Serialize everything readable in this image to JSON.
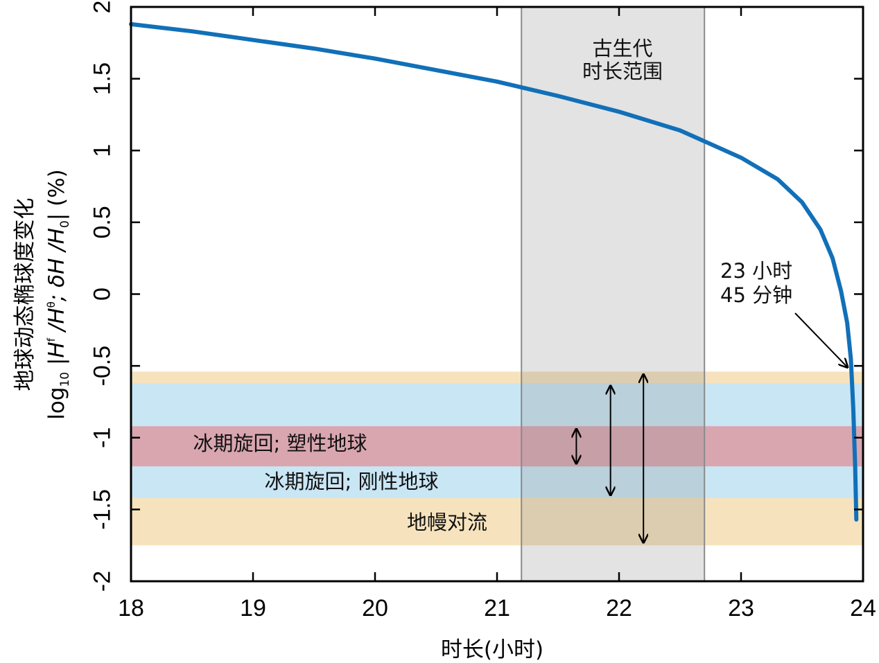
{
  "chart_data": {
    "type": "line",
    "xlabel": "时长(小时)",
    "ylabel_line1": "地球动态椭球度变化",
    "ylabel_line2_prefix": "log",
    "ylabel_line2_sub": "10",
    "ylabel_line2_mid": " |H",
    "ylabel_line2_sup1": "f",
    "ylabel_line2_mid2": " /H",
    "ylabel_line2_sup2": "θ",
    "ylabel_line2_mid3": "; δH /H",
    "ylabel_line2_sub2": "0",
    "ylabel_line2_end": "| (%)",
    "xlim": [
      18,
      24
    ],
    "ylim": [
      -2,
      2
    ],
    "xticks": [
      18,
      19,
      20,
      21,
      22,
      23,
      24
    ],
    "xtick_labels": [
      "18",
      "19",
      "20",
      "21",
      "22",
      "23",
      "24"
    ],
    "yticks": [
      2,
      1.5,
      1,
      0.5,
      0,
      -0.5,
      -1,
      -1.5,
      -2
    ],
    "ytick_labels": [
      "2",
      "1.5",
      "1",
      "0.5",
      "0",
      "-0.5",
      "-1",
      "-1.5",
      "-2"
    ],
    "series": [
      {
        "color": "#1170b8",
        "x": [
          18,
          18.5,
          19,
          19.5,
          20,
          20.5,
          21,
          21.5,
          22,
          22.5,
          23,
          23.3,
          23.5,
          23.65,
          23.75,
          23.82,
          23.87,
          23.9,
          23.92,
          23.935,
          23.945
        ],
        "y": [
          1.88,
          1.83,
          1.77,
          1.71,
          1.64,
          1.56,
          1.48,
          1.38,
          1.27,
          1.14,
          0.95,
          0.8,
          0.64,
          0.45,
          0.25,
          0.02,
          -0.2,
          -0.45,
          -0.8,
          -1.2,
          -1.57
        ]
      }
    ],
    "paleozoic_band": {
      "x_range": [
        21.2,
        22.7
      ],
      "label_line1": "古生代",
      "label_line2": "时长范围",
      "color": "#e3e3e3"
    },
    "bands": [
      {
        "label": "地幔对流",
        "y_range": [
          -1.75,
          -0.54
        ],
        "color": "#f6e3bd"
      },
      {
        "label": "冰期旋回; 刚性地球",
        "y_range": [
          -1.42,
          -0.62
        ],
        "color": "#c9e6f5"
      },
      {
        "label": "冰期旋回; 塑性地球",
        "y_range": [
          -1.2,
          -0.92
        ],
        "color": "#d9a6b0"
      }
    ],
    "range_arrows": [
      {
        "x": 21.65,
        "y_range": [
          -1.2,
          -0.92
        ]
      },
      {
        "x": 21.93,
        "y_range": [
          -1.42,
          -0.62
        ]
      },
      {
        "x": 22.2,
        "y_range": [
          -1.75,
          -0.54
        ]
      }
    ],
    "callout": {
      "line1": "23 小时",
      "line2": "45 分钟",
      "target": [
        23.895,
        -0.5
      ]
    }
  }
}
